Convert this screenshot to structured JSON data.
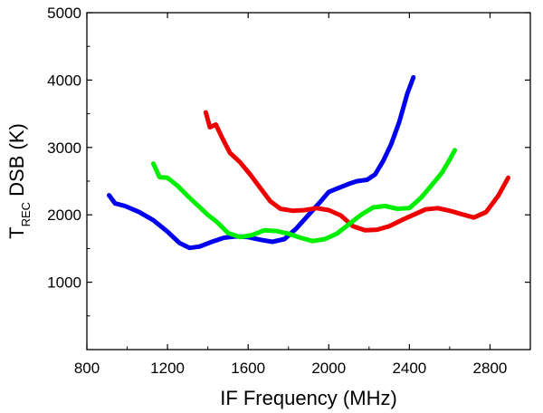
{
  "chart_data": {
    "type": "line",
    "title": "",
    "xlabel": "IF Frequency (MHz)",
    "ylabel_main": "T",
    "ylabel_sub": "REC",
    "ylabel_rest": " DSB (K)",
    "xlim": [
      800,
      3000
    ],
    "ylim": [
      0,
      5000
    ],
    "xticks": [
      800,
      1200,
      1600,
      2000,
      2400,
      2800
    ],
    "xtick_labels": [
      "800",
      "1200",
      "1600",
      "2000",
      "2400",
      "2800"
    ],
    "yticks": [
      1000,
      2000,
      3000,
      4000,
      5000
    ],
    "ytick_labels": [
      "1000",
      "2000",
      "3000",
      "4000",
      "5000"
    ],
    "legend": "none",
    "grid": false,
    "series": [
      {
        "name": "blue",
        "color": "#0000ee",
        "x": [
          910,
          940,
          990,
          1060,
          1130,
          1200,
          1260,
          1310,
          1360,
          1420,
          1480,
          1540,
          1600,
          1660,
          1720,
          1780,
          1840,
          1900,
          1960,
          2000,
          2050,
          2100,
          2140,
          2190,
          2230,
          2270,
          2310,
          2350,
          2390,
          2420
        ],
        "y": [
          2290,
          2170,
          2130,
          2040,
          1920,
          1750,
          1580,
          1510,
          1530,
          1600,
          1660,
          1680,
          1670,
          1630,
          1600,
          1640,
          1800,
          2000,
          2200,
          2340,
          2400,
          2460,
          2500,
          2520,
          2600,
          2800,
          3050,
          3380,
          3800,
          4040
        ]
      },
      {
        "name": "red",
        "color": "#ee0000",
        "x": [
          1390,
          1410,
          1440,
          1470,
          1510,
          1560,
          1610,
          1660,
          1710,
          1760,
          1820,
          1880,
          1940,
          2000,
          2060,
          2120,
          2180,
          2240,
          2300,
          2360,
          2420,
          2480,
          2540,
          2600,
          2660,
          2720,
          2780,
          2840,
          2890
        ],
        "y": [
          3520,
          3300,
          3340,
          3150,
          2920,
          2780,
          2600,
          2400,
          2200,
          2090,
          2060,
          2070,
          2100,
          2070,
          1990,
          1830,
          1770,
          1780,
          1830,
          1920,
          2000,
          2080,
          2100,
          2060,
          2010,
          1960,
          2040,
          2280,
          2550
        ]
      },
      {
        "name": "green",
        "color": "#00ee00",
        "x": [
          1130,
          1160,
          1200,
          1250,
          1300,
          1350,
          1400,
          1450,
          1500,
          1560,
          1620,
          1680,
          1740,
          1800,
          1860,
          1920,
          1980,
          2040,
          2100,
          2160,
          2220,
          2280,
          2340,
          2400,
          2460,
          2510,
          2560,
          2600,
          2625
        ],
        "y": [
          2760,
          2560,
          2550,
          2430,
          2280,
          2140,
          2000,
          1880,
          1730,
          1670,
          1700,
          1770,
          1760,
          1720,
          1660,
          1610,
          1640,
          1720,
          1860,
          2000,
          2110,
          2130,
          2090,
          2100,
          2260,
          2440,
          2620,
          2820,
          2960
        ]
      }
    ]
  }
}
